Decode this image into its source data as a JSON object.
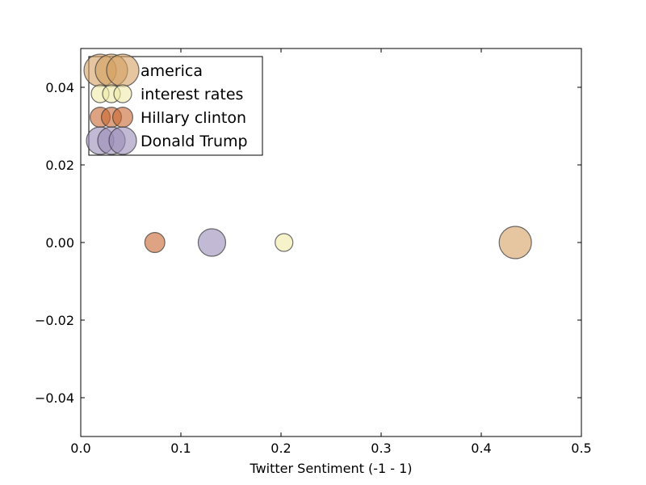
{
  "chart_data": {
    "type": "scatter",
    "title": "",
    "xlabel": "Twitter Sentiment (-1  -  1)",
    "ylabel": "",
    "xlim": [
      0.0,
      0.5
    ],
    "ylim": [
      -0.05,
      0.05
    ],
    "x_ticks": [
      "0.0",
      "0.1",
      "0.2",
      "0.3",
      "0.4",
      "0.5"
    ],
    "y_ticks": [
      "0.04",
      "0.02",
      "0.00",
      "−0.02",
      "−0.04"
    ],
    "grid": false,
    "legend_position": "top-left",
    "series": [
      {
        "name": "america",
        "x": [
          0.434
        ],
        "y": [
          0.0
        ],
        "size": 1.0,
        "color": "#d4a060"
      },
      {
        "name": "interest rates",
        "x": [
          0.203
        ],
        "y": [
          0.0
        ],
        "size": 0.55,
        "color": "#f0eaa6"
      },
      {
        "name": "Hillary clinton",
        "x": [
          0.074
        ],
        "y": [
          0.0
        ],
        "size": 0.62,
        "color": "#c8662f"
      },
      {
        "name": "Donald Trump",
        "x": [
          0.131
        ],
        "y": [
          0.0
        ],
        "size": 0.85,
        "color": "#9a8cb8"
      }
    ]
  }
}
